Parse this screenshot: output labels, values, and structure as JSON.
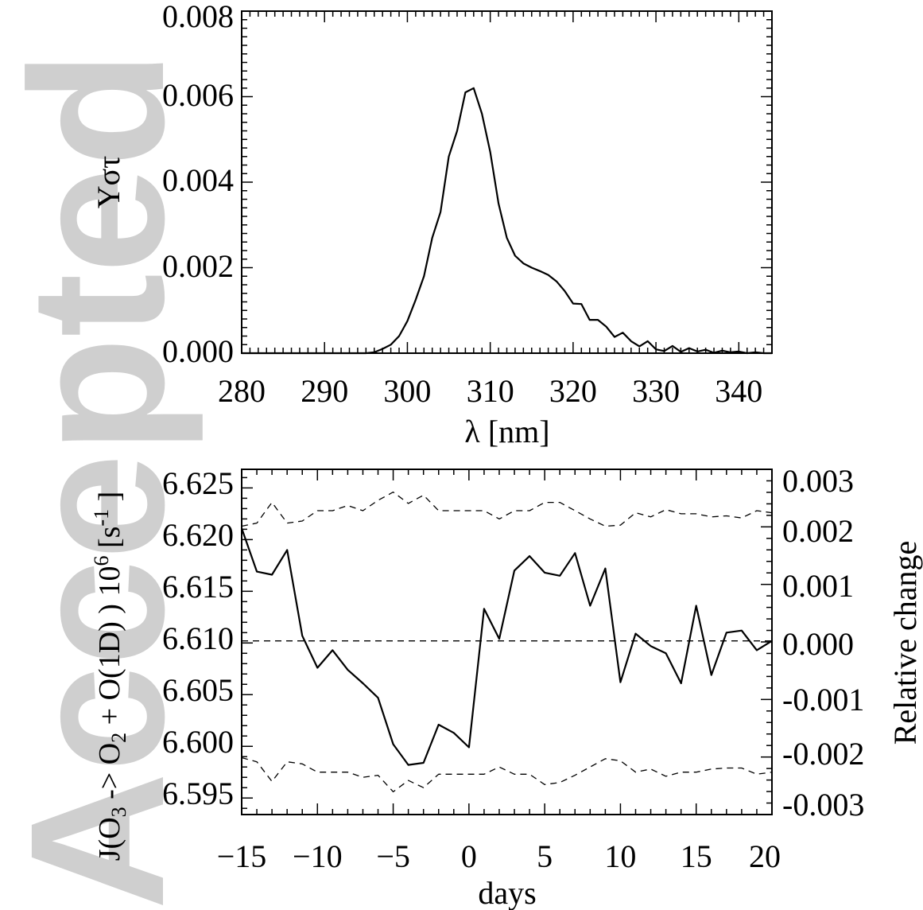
{
  "watermark": "Accepted Article",
  "chart_data": [
    {
      "type": "line",
      "xlabel": "λ [nm]",
      "ylabel": "Yστ",
      "xlim": [
        280,
        344
      ],
      "ylim": [
        0.0,
        0.008
      ],
      "x_ticks": [
        "280",
        "290",
        "300",
        "310",
        "320",
        "330",
        "340"
      ],
      "y_ticks": [
        "0.000",
        "0.002",
        "0.004",
        "0.006",
        "0.008"
      ],
      "grid": false,
      "series": [
        {
          "style": "solid",
          "x": [
            280,
            290,
            295,
            296,
            297,
            298,
            299,
            300,
            301,
            302,
            303,
            304,
            305,
            306,
            307,
            308,
            309,
            310,
            311,
            312,
            313,
            314,
            315,
            316,
            317,
            318,
            319,
            320,
            321,
            322,
            323,
            324,
            325,
            326,
            327,
            328,
            329,
            330,
            331,
            332,
            333,
            334,
            335,
            336,
            337,
            338,
            339,
            340,
            341,
            342,
            343,
            344
          ],
          "y": [
            0.0,
            0.0,
            0.0,
            2e-05,
            0.0001,
            0.0002,
            0.0004,
            0.00075,
            0.00125,
            0.0018,
            0.0027,
            0.0033,
            0.0046,
            0.0052,
            0.0061,
            0.0062,
            0.0056,
            0.0047,
            0.0035,
            0.0027,
            0.00228,
            0.0021,
            0.002,
            0.00192,
            0.00183,
            0.00168,
            0.00145,
            0.00116,
            0.00115,
            0.00078,
            0.00078,
            0.00062,
            0.00038,
            0.00048,
            0.00028,
            0.00016,
            0.00028,
            9e-05,
            5e-05,
            0.00017,
            3e-05,
            0.00012,
            4e-05,
            8e-05,
            1e-05,
            6e-05,
            2e-05,
            4e-05,
            0.0,
            2e-05,
            0.0,
            0.0
          ]
        }
      ]
    },
    {
      "type": "line",
      "xlabel": "days",
      "ylabel": "J(O3 -> O2 + O(1D) ) 10^6 [s^-1 ]",
      "ylabel_right": "Relative change",
      "xlim": [
        -15,
        20
      ],
      "ylim": [
        6.5934,
        6.6268
      ],
      "ylim_right": [
        -0.003,
        0.003
      ],
      "x_ticks": [
        "−15",
        "−10",
        "−5",
        "0",
        "5",
        "10",
        "15",
        "20"
      ],
      "y_ticks": [
        "6.595",
        "6.600",
        "6.605",
        "6.610",
        "6.615",
        "6.620",
        "6.625"
      ],
      "y_ticks_right": [
        "-0.003",
        "-0.002",
        "-0.001",
        "0.000",
        "0.001",
        "0.002",
        "0.003"
      ],
      "grid": false,
      "series": [
        {
          "style": "solid",
          "x": [
            -15,
            -14,
            -13,
            -12,
            -11,
            -10,
            -9,
            -8,
            -7,
            -6,
            -5,
            -4,
            -3,
            -2,
            -1,
            0,
            1,
            2,
            3,
            4,
            5,
            6,
            7,
            8,
            9,
            10,
            11,
            12,
            13,
            14,
            15,
            16,
            17,
            18,
            19,
            20
          ],
          "y": [
            6.6211,
            6.6169,
            6.6166,
            6.619,
            6.6107,
            6.6076,
            6.6093,
            6.6074,
            6.6061,
            6.6047,
            6.6002,
            6.5982,
            6.5984,
            6.6021,
            6.6013,
            6.5999,
            6.6133,
            6.6104,
            6.617,
            6.6184,
            6.6168,
            6.6165,
            6.6187,
            6.6136,
            6.6172,
            6.6062,
            6.6109,
            6.6097,
            6.609,
            6.6061,
            6.6136,
            6.6069,
            6.611,
            6.6112,
            6.6093,
            6.6102
          ]
        },
        {
          "style": "dashed",
          "x": [
            -15,
            -14,
            -13,
            -12,
            -11,
            -10,
            -9,
            -8,
            -7,
            -6,
            -5,
            -4,
            -3,
            -2,
            -1,
            0,
            1,
            2,
            3,
            4,
            5,
            6,
            7,
            8,
            9,
            10,
            11,
            12,
            13,
            14,
            15,
            16,
            17,
            18,
            19,
            20
          ],
          "y": [
            6.6213,
            6.6216,
            6.6236,
            6.6216,
            6.6218,
            6.6228,
            6.6228,
            6.6233,
            6.6228,
            6.6238,
            6.6246,
            6.6235,
            6.6243,
            6.6228,
            6.6228,
            6.6228,
            6.6228,
            6.622,
            6.6228,
            6.6228,
            6.6236,
            6.6236,
            6.6228,
            6.622,
            6.6213,
            6.6214,
            6.6226,
            6.6222,
            6.6229,
            6.6225,
            6.6225,
            6.6222,
            6.6223,
            6.6221,
            6.6228,
            6.6226
          ]
        },
        {
          "style": "dashed",
          "x": [
            -15,
            -14,
            -13,
            -12,
            -11,
            -10,
            -9,
            -8,
            -7,
            -6,
            -5,
            -4,
            -3,
            -2,
            -1,
            0,
            1,
            2,
            3,
            4,
            5,
            6,
            7,
            8,
            9,
            10,
            11,
            12,
            13,
            14,
            15,
            16,
            17,
            18,
            19,
            20
          ],
          "y": [
            6.5989,
            6.5985,
            6.5966,
            6.5985,
            6.5983,
            6.5975,
            6.5975,
            6.5975,
            6.597,
            6.5972,
            6.5956,
            6.5967,
            6.596,
            6.5973,
            6.5973,
            6.5973,
            6.5973,
            6.598,
            6.5973,
            6.5973,
            6.5963,
            6.5965,
            6.5972,
            6.598,
            6.5988,
            6.5986,
            6.5975,
            6.5978,
            6.5971,
            6.5975,
            6.5975,
            6.5978,
            6.5979,
            6.5979,
            6.5973,
            6.5975
          ]
        },
        {
          "style": "dashed",
          "x": [
            -15,
            20
          ],
          "y": [
            6.6102,
            6.6102
          ]
        }
      ]
    }
  ]
}
